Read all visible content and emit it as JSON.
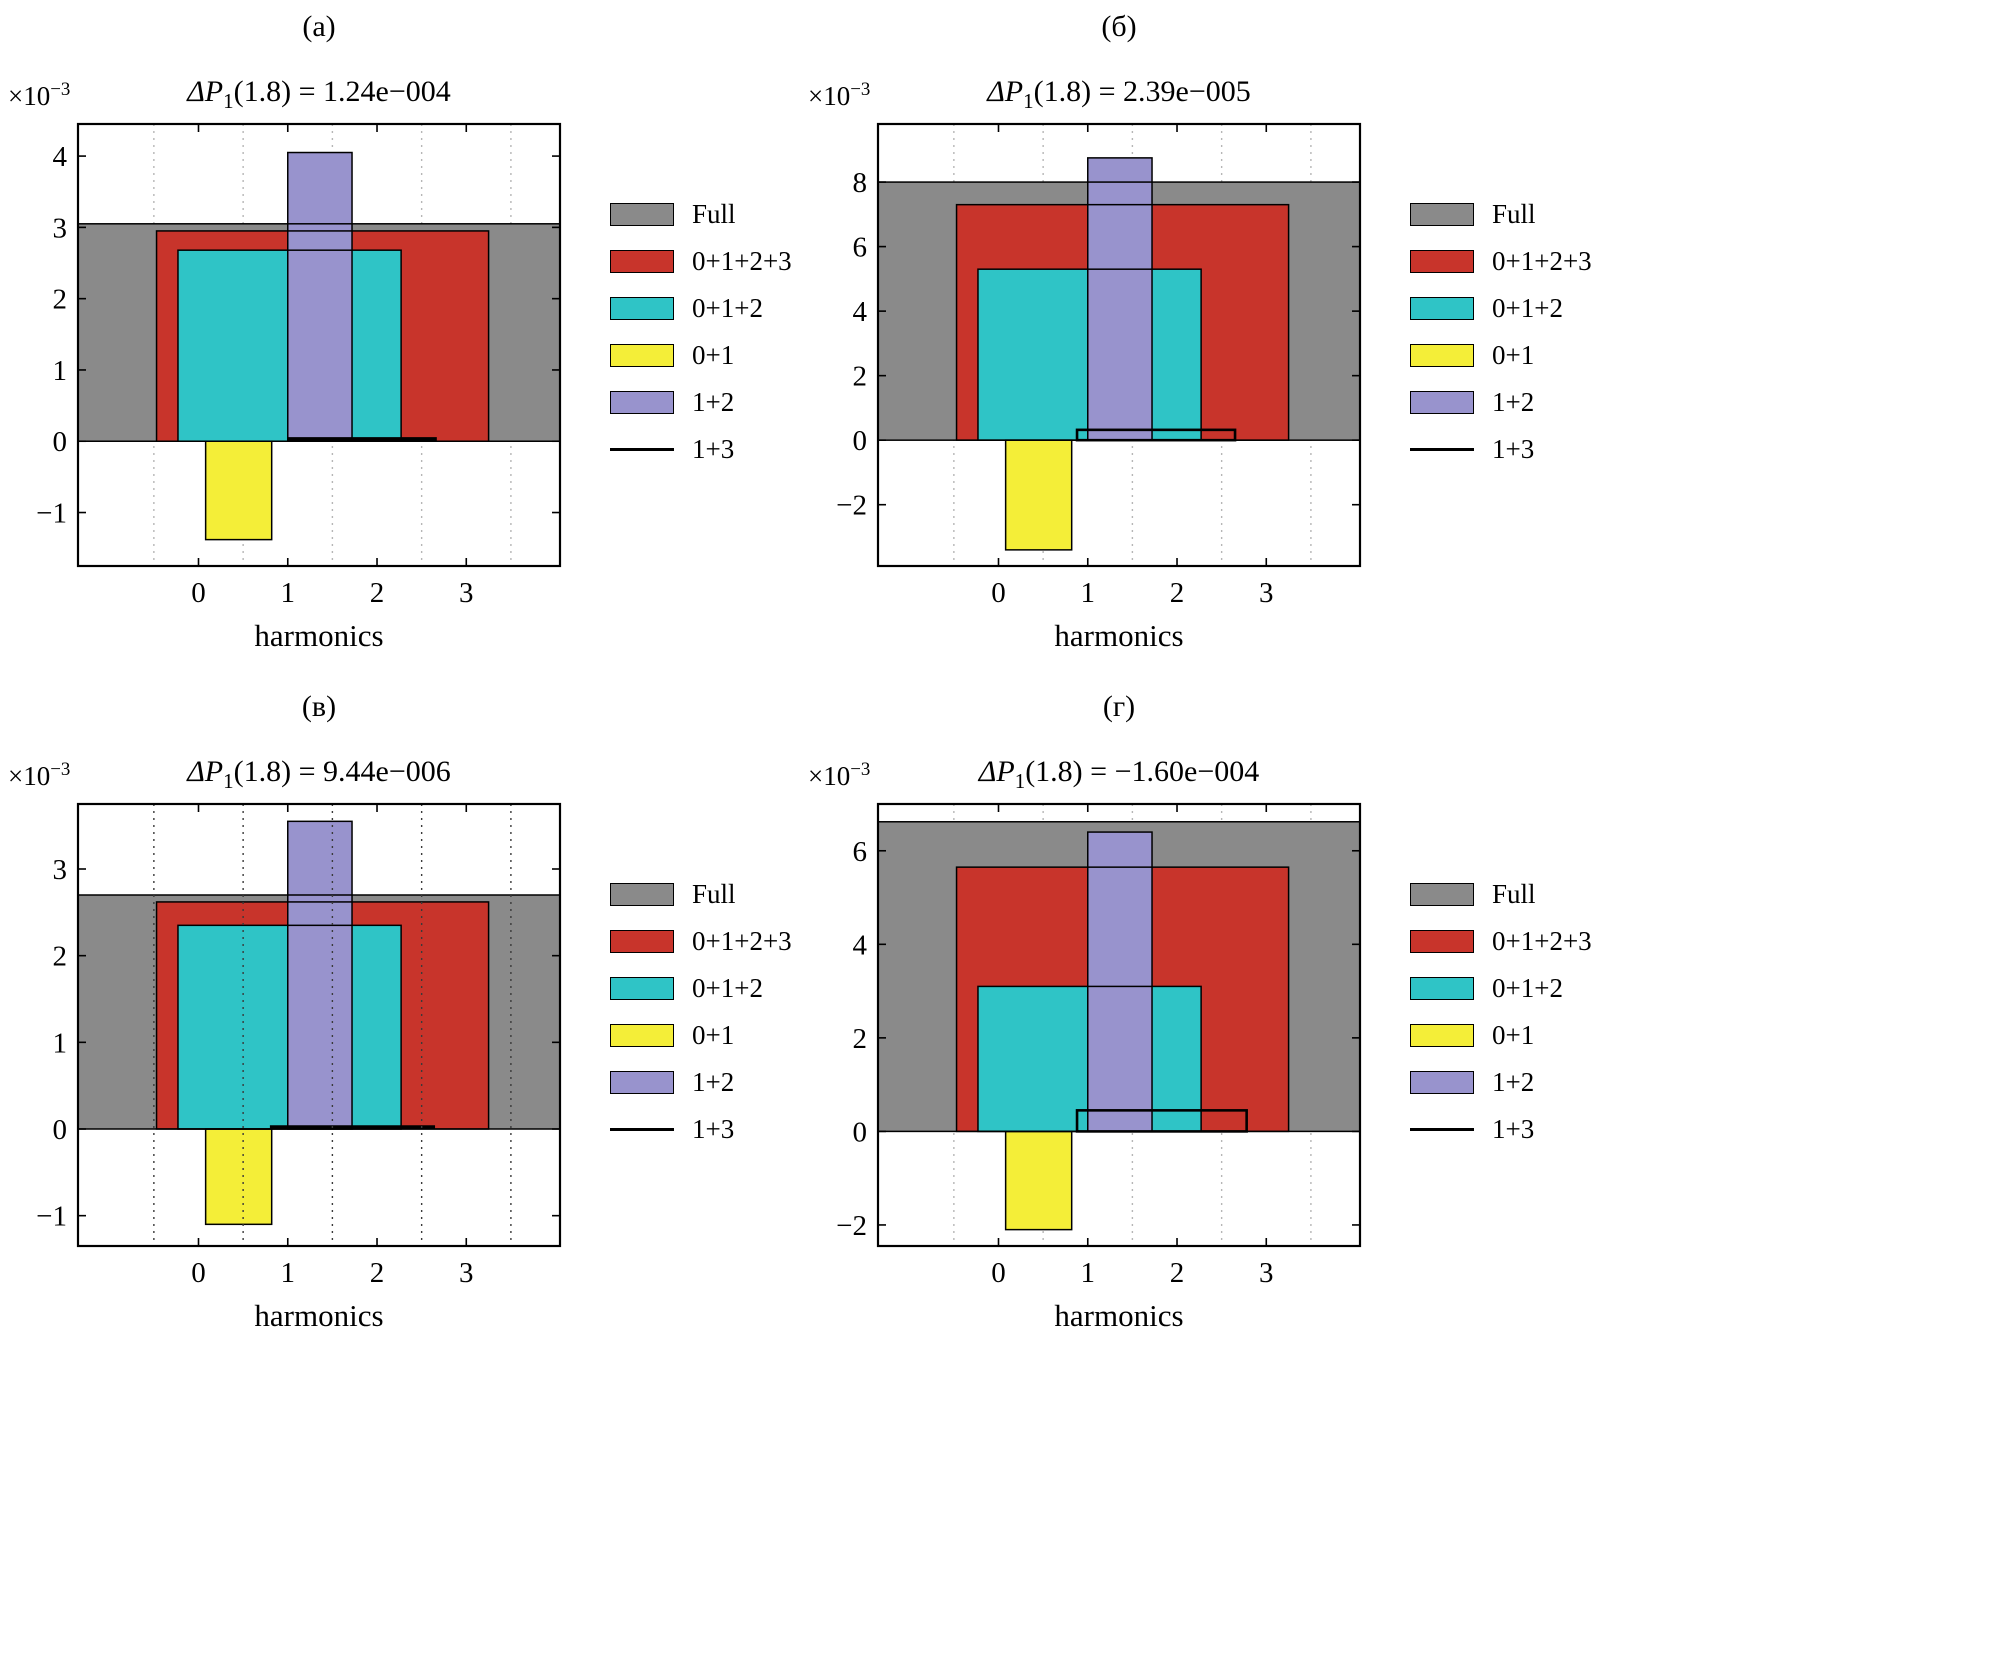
{
  "figure": {
    "background": "#ffffff"
  },
  "legend": {
    "items": [
      {
        "label": "Full",
        "color": "#8a8a8a",
        "style": "fill"
      },
      {
        "label": "0+1+2+3",
        "color": "#c8342b",
        "style": "fill"
      },
      {
        "label": "0+1+2",
        "color": "#2fc4c6",
        "style": "fill"
      },
      {
        "label": "0+1",
        "color": "#f4ee38",
        "style": "fill"
      },
      {
        "label": "1+2",
        "color": "#9893cd",
        "style": "fill"
      },
      {
        "label": "1+3",
        "color": "#000000",
        "style": "line"
      }
    ]
  },
  "panels": [
    {
      "label": "(а)",
      "scale_base": "×10",
      "scale_exp": "−3",
      "title_prefix": "ΔP",
      "title_sub": "1",
      "title_rest": "(1.8) = 1.24e−004",
      "xlabel": "harmonics"
    },
    {
      "label": "(б)",
      "scale_base": "×10",
      "scale_exp": "−3",
      "title_prefix": "ΔP",
      "title_sub": "1",
      "title_rest": "(1.8) = 2.39e−005",
      "xlabel": "harmonics"
    },
    {
      "label": "(в)",
      "scale_base": "×10",
      "scale_exp": "−3",
      "title_prefix": "ΔP",
      "title_sub": "1",
      "title_rest": "(1.8) = 9.44e−006",
      "xlabel": "harmonics"
    },
    {
      "label": "(г)",
      "scale_base": "×10",
      "scale_exp": "−3",
      "title_prefix": "ΔP",
      "title_sub": "1",
      "title_rest": "(1.8) = −1.60e−004",
      "xlabel": "harmonics"
    }
  ],
  "chart_data": [
    {
      "type": "bar",
      "title": "ΔP1(1.8) = 1.24e−004",
      "y_scale": "×10−3",
      "xlabel": "harmonics",
      "x_range": [
        -1.35,
        4.05
      ],
      "y_range": [
        -1.75,
        4.45
      ],
      "x_ticks": [
        0,
        1,
        2,
        3
      ],
      "y_ticks": [
        4,
        3,
        2,
        1,
        0,
        -1
      ],
      "gridlines_x": [
        -0.5,
        0.5,
        1.5,
        2.5,
        3.5
      ],
      "grid_color": "#b6b6b6",
      "grid_on_top": false,
      "series": [
        {
          "name": "Full",
          "style": "fill",
          "color": "#8a8a8a",
          "x0": -1.35,
          "x1": 4.05,
          "value": 3.05
        },
        {
          "name": "0+1+2+3",
          "style": "fill",
          "color": "#c8342b",
          "x0": -0.47,
          "x1": 3.25,
          "value": 2.95
        },
        {
          "name": "0+1+2",
          "style": "fill",
          "color": "#2fc4c6",
          "x0": -0.23,
          "x1": 2.27,
          "value": 2.68
        },
        {
          "name": "1+2",
          "style": "fill",
          "color": "#9893cd",
          "x0": 1.0,
          "x1": 1.72,
          "value": 4.05
        },
        {
          "name": "0+1",
          "style": "fill",
          "color": "#f4ee38",
          "x0": 0.08,
          "x1": 0.82,
          "value": -1.38
        },
        {
          "name": "1+3",
          "style": "line",
          "color": "#000000",
          "x0": 1.0,
          "x1": 2.67,
          "value": 0.03
        }
      ]
    },
    {
      "type": "bar",
      "title": "ΔP1(1.8) = 2.39e−005",
      "y_scale": "×10−3",
      "xlabel": "harmonics",
      "x_range": [
        -1.35,
        4.05
      ],
      "y_range": [
        -3.9,
        9.8
      ],
      "x_ticks": [
        0,
        1,
        2,
        3
      ],
      "y_ticks": [
        8,
        6,
        4,
        2,
        0,
        -2
      ],
      "gridlines_x": [
        -0.5,
        0.5,
        1.5,
        2.5,
        3.5
      ],
      "grid_color": "#b6b6b6",
      "grid_on_top": false,
      "series": [
        {
          "name": "Full",
          "style": "fill",
          "color": "#8a8a8a",
          "x0": -1.35,
          "x1": 4.05,
          "value": 8.0
        },
        {
          "name": "0+1+2+3",
          "style": "fill",
          "color": "#c8342b",
          "x0": -0.47,
          "x1": 3.25,
          "value": 7.3
        },
        {
          "name": "0+1+2",
          "style": "fill",
          "color": "#2fc4c6",
          "x0": -0.23,
          "x1": 2.27,
          "value": 5.3
        },
        {
          "name": "1+2",
          "style": "fill",
          "color": "#9893cd",
          "x0": 1.0,
          "x1": 1.72,
          "value": 8.75
        },
        {
          "name": "0+1",
          "style": "fill",
          "color": "#f4ee38",
          "x0": 0.08,
          "x1": 0.82,
          "value": -3.4
        },
        {
          "name": "1+3",
          "style": "box",
          "color": "#000000",
          "x0": 0.88,
          "x1": 2.65,
          "value": 0.32
        }
      ]
    },
    {
      "type": "bar",
      "title": "ΔP1(1.8) = 9.44e−006",
      "y_scale": "×10−3",
      "xlabel": "harmonics",
      "x_range": [
        -1.35,
        4.05
      ],
      "y_range": [
        -1.35,
        3.75
      ],
      "x_ticks": [
        0,
        1,
        2,
        3
      ],
      "y_ticks": [
        3,
        2,
        1,
        0,
        -1
      ],
      "gridlines_x": [
        -0.5,
        0.5,
        1.5,
        2.5,
        3.5
      ],
      "grid_color": "#3a3a3a",
      "grid_on_top": true,
      "series": [
        {
          "name": "Full",
          "style": "fill",
          "color": "#8a8a8a",
          "x0": -1.35,
          "x1": 4.05,
          "value": 2.7
        },
        {
          "name": "0+1+2+3",
          "style": "fill",
          "color": "#c8342b",
          "x0": -0.47,
          "x1": 3.25,
          "value": 2.62
        },
        {
          "name": "0+1+2",
          "style": "fill",
          "color": "#2fc4c6",
          "x0": -0.23,
          "x1": 2.27,
          "value": 2.35
        },
        {
          "name": "1+2",
          "style": "fill",
          "color": "#9893cd",
          "x0": 1.0,
          "x1": 1.72,
          "value": 3.55
        },
        {
          "name": "0+1",
          "style": "fill",
          "color": "#f4ee38",
          "x0": 0.08,
          "x1": 0.82,
          "value": -1.1
        },
        {
          "name": "1+3",
          "style": "line",
          "color": "#000000",
          "x0": 0.8,
          "x1": 2.65,
          "value": 0.02
        }
      ]
    },
    {
      "type": "bar",
      "title": "ΔP1(1.8) = −1.60e−004",
      "y_scale": "×10−3",
      "xlabel": "harmonics",
      "x_range": [
        -1.35,
        4.05
      ],
      "y_range": [
        -2.45,
        7.0
      ],
      "x_ticks": [
        0,
        1,
        2,
        3
      ],
      "y_ticks": [
        6,
        4,
        2,
        0,
        -2
      ],
      "gridlines_x": [
        -0.5,
        0.5,
        1.5,
        2.5,
        3.5
      ],
      "grid_color": "#b6b6b6",
      "grid_on_top": false,
      "series": [
        {
          "name": "Full",
          "style": "fill",
          "color": "#8a8a8a",
          "x0": -1.35,
          "x1": 4.05,
          "value": 6.62
        },
        {
          "name": "0+1+2+3",
          "style": "fill",
          "color": "#c8342b",
          "x0": -0.47,
          "x1": 3.25,
          "value": 5.65
        },
        {
          "name": "0+1+2",
          "style": "fill",
          "color": "#2fc4c6",
          "x0": -0.23,
          "x1": 2.27,
          "value": 3.1
        },
        {
          "name": "1+2",
          "style": "fill",
          "color": "#9893cd",
          "x0": 1.0,
          "x1": 1.72,
          "value": 6.4
        },
        {
          "name": "0+1",
          "style": "fill",
          "color": "#f4ee38",
          "x0": 0.08,
          "x1": 0.82,
          "value": -2.1
        },
        {
          "name": "1+3",
          "style": "box",
          "color": "#000000",
          "x0": 0.88,
          "x1": 2.78,
          "value": 0.45
        }
      ]
    }
  ]
}
